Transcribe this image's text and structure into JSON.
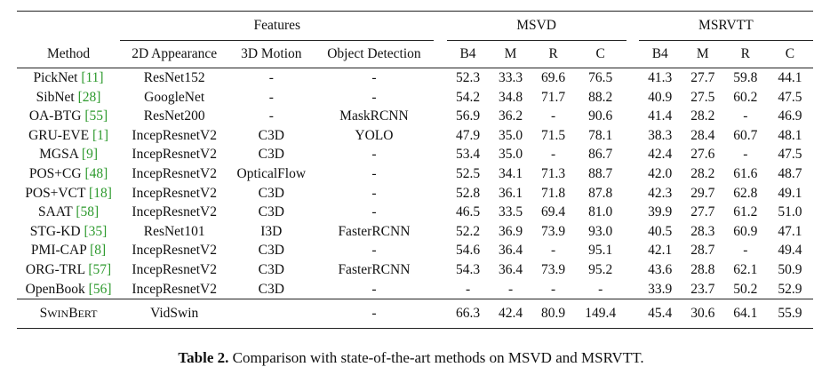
{
  "table": {
    "group_headers": {
      "features": "Features",
      "msvd": "MSVD",
      "msrvtt": "MSRVTT"
    },
    "column_headers": {
      "method": "Method",
      "appearance": "2D Appearance",
      "motion": "3D Motion",
      "detection": "Object Detection",
      "msvd_b4": "B4",
      "msvd_m": "M",
      "msvd_r": "R",
      "msvd_c": "C",
      "msrvtt_b4": "B4",
      "msrvtt_m": "M",
      "msrvtt_r": "R",
      "msrvtt_c": "C"
    },
    "rows": [
      {
        "method": "PickNet",
        "cite": "[11]",
        "appearance": "ResNet152",
        "motion": "-",
        "detection": "-",
        "msvd": [
          "52.3",
          "33.3",
          "69.6",
          "76.5"
        ],
        "msrvtt": [
          "41.3",
          "27.7",
          "59.8",
          "44.1"
        ]
      },
      {
        "method": "SibNet",
        "cite": "[28]",
        "appearance": "GoogleNet",
        "motion": "-",
        "detection": "-",
        "msvd": [
          "54.2",
          "34.8",
          "71.7",
          "88.2"
        ],
        "msrvtt": [
          "40.9",
          "27.5",
          "60.2",
          "47.5"
        ]
      },
      {
        "method": "OA-BTG",
        "cite": "[55]",
        "appearance": "ResNet200",
        "motion": "-",
        "detection": "MaskRCNN",
        "msvd": [
          "56.9",
          "36.2",
          "-",
          "90.6"
        ],
        "msrvtt": [
          "41.4",
          "28.2",
          "-",
          "46.9"
        ]
      },
      {
        "method": "GRU-EVE",
        "cite": "[1]",
        "appearance": "IncepResnetV2",
        "motion": "C3D",
        "detection": "YOLO",
        "msvd": [
          "47.9",
          "35.0",
          "71.5",
          "78.1"
        ],
        "msrvtt": [
          "38.3",
          "28.4",
          "60.7",
          "48.1"
        ]
      },
      {
        "method": "MGSA",
        "cite": "[9]",
        "appearance": "IncepResnetV2",
        "motion": "C3D",
        "detection": "-",
        "msvd": [
          "53.4",
          "35.0",
          "-",
          "86.7"
        ],
        "msrvtt": [
          "42.4",
          "27.6",
          "-",
          "47.5"
        ]
      },
      {
        "method": "POS+CG",
        "cite": "[48]",
        "appearance": "IncepResnetV2",
        "motion": "OpticalFlow",
        "detection": "-",
        "msvd": [
          "52.5",
          "34.1",
          "71.3",
          "88.7"
        ],
        "msrvtt": [
          "42.0",
          "28.2",
          "61.6",
          "48.7"
        ]
      },
      {
        "method": "POS+VCT",
        "cite": "[18]",
        "appearance": "IncepResnetV2",
        "motion": "C3D",
        "detection": "-",
        "msvd": [
          "52.8",
          "36.1",
          "71.8",
          "87.8"
        ],
        "msrvtt": [
          "42.3",
          "29.7",
          "62.8",
          "49.1"
        ]
      },
      {
        "method": "SAAT",
        "cite": "[58]",
        "appearance": "IncepResnetV2",
        "motion": "C3D",
        "detection": "-",
        "msvd": [
          "46.5",
          "33.5",
          "69.4",
          "81.0"
        ],
        "msrvtt": [
          "39.9",
          "27.7",
          "61.2",
          "51.0"
        ]
      },
      {
        "method": "STG-KD",
        "cite": "[35]",
        "appearance": "ResNet101",
        "motion": "I3D",
        "detection": "FasterRCNN",
        "msvd": [
          "52.2",
          "36.9",
          "73.9",
          "93.0"
        ],
        "msrvtt": [
          "40.5",
          "28.3",
          "60.9",
          "47.1"
        ]
      },
      {
        "method": "PMI-CAP",
        "cite": "[8]",
        "appearance": "IncepResnetV2",
        "motion": "C3D",
        "detection": "-",
        "msvd": [
          "54.6",
          "36.4",
          "-",
          "95.1"
        ],
        "msrvtt": [
          "42.1",
          "28.7",
          "-",
          "49.4"
        ]
      },
      {
        "method": "ORG-TRL",
        "cite": "[57]",
        "appearance": "IncepResnetV2",
        "motion": "C3D",
        "detection": "FasterRCNN",
        "msvd": [
          "54.3",
          "36.4",
          "73.9",
          "95.2"
        ],
        "msrvtt": [
          "43.6",
          "28.8",
          "62.1",
          "50.9"
        ]
      },
      {
        "method": "OpenBook",
        "cite": "[56]",
        "appearance": "IncepResnetV2",
        "motion": "C3D",
        "detection": "-",
        "msvd": [
          "-",
          "-",
          "-",
          "-"
        ],
        "msrvtt": [
          "33.9",
          "23.7",
          "50.2",
          "52.9"
        ]
      }
    ],
    "final_row": {
      "method_parts": [
        "S",
        "WIN",
        "B",
        "ERT"
      ],
      "appearance": "VidSwin",
      "motion": "",
      "detection": "-",
      "msvd": [
        "66.3",
        "42.4",
        "80.9",
        "149.4"
      ],
      "msrvtt": [
        "45.4",
        "30.6",
        "64.1",
        "55.9"
      ]
    }
  },
  "caption": {
    "label": "Table 2.",
    "text": " Comparison with state-of-the-art methods on MSVD and MSRVTT."
  },
  "colors": {
    "citation": "#2e9a2e",
    "text": "#111111"
  }
}
